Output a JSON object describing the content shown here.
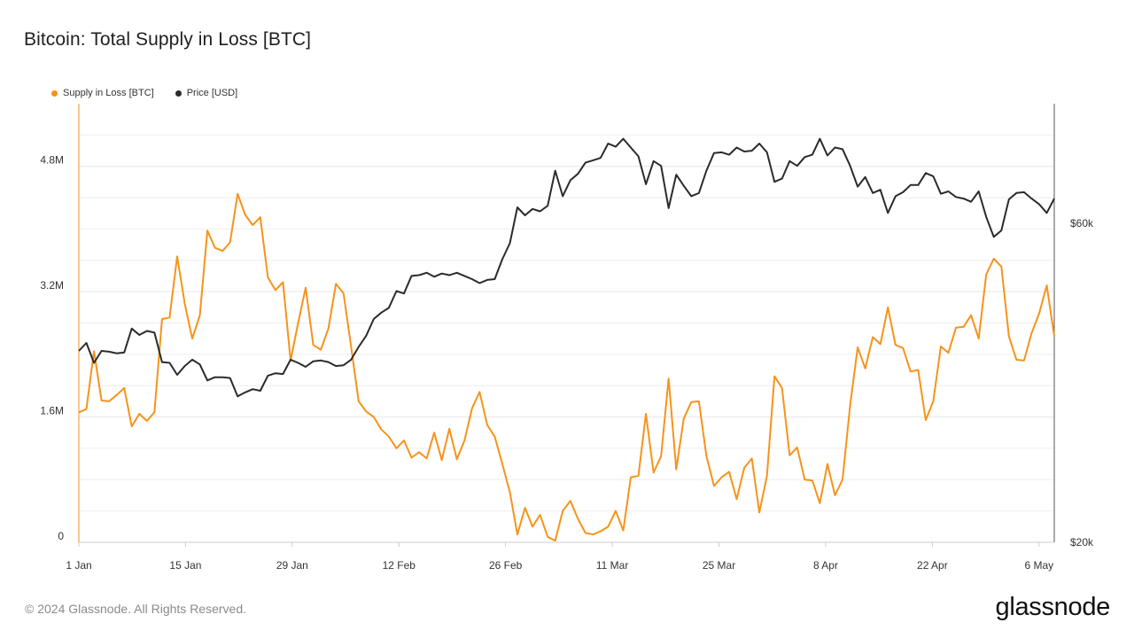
{
  "title": "Bitcoin: Total Supply in Loss [BTC]",
  "footer": "© 2024 Glassnode. All Rights Reserved.",
  "brand": "glassnode",
  "colors": {
    "supply": "#f7931a",
    "price": "#2b2b2b",
    "grid": "#eeeeee",
    "axis": "#cccccc"
  },
  "chart_data": {
    "type": "line",
    "title": "Bitcoin: Total Supply in Loss [BTC]",
    "legend_position": "top-left",
    "grid": true,
    "x_ticks": [
      "1 Jan",
      "15 Jan",
      "29 Jan",
      "12 Feb",
      "26 Feb",
      "11 Mar",
      "25 Mar",
      "8 Apr",
      "22 Apr",
      "6 May"
    ],
    "x_range_days": [
      0,
      128
    ],
    "y_left": {
      "ticks": [
        "0",
        "1.6M",
        "3.2M",
        "4.8M"
      ],
      "tick_values": [
        0,
        1.6,
        3.2,
        4.8
      ],
      "range": [
        0,
        5.6
      ],
      "unit": "M BTC"
    },
    "y_right": {
      "ticks": [
        "$20k",
        "$60k"
      ],
      "tick_values": [
        20,
        60
      ],
      "range": [
        20,
        75
      ],
      "unit": "k USD"
    },
    "series": [
      {
        "name": "Supply in Loss [BTC]",
        "axis": "left",
        "values": [
          1.66,
          1.7,
          2.44,
          1.81,
          1.8,
          1.88,
          1.97,
          1.48,
          1.64,
          1.55,
          1.66,
          2.85,
          2.87,
          3.65,
          3.05,
          2.6,
          2.9,
          3.98,
          3.76,
          3.72,
          3.83,
          4.45,
          4.18,
          4.05,
          4.15,
          3.38,
          3.22,
          3.32,
          2.32,
          2.8,
          3.25,
          2.52,
          2.46,
          2.73,
          3.3,
          3.18,
          2.5,
          1.8,
          1.67,
          1.6,
          1.44,
          1.35,
          1.2,
          1.3,
          1.08,
          1.15,
          1.07,
          1.4,
          1.05,
          1.45,
          1.06,
          1.3,
          1.71,
          1.92,
          1.5,
          1.35,
          1.0,
          0.64,
          0.1,
          0.44,
          0.2,
          0.35,
          0.07,
          0.02,
          0.4,
          0.53,
          0.3,
          0.12,
          0.1,
          0.14,
          0.2,
          0.4,
          0.15,
          0.83,
          0.85,
          1.64,
          0.89,
          1.1,
          2.09,
          0.93,
          1.58,
          1.79,
          1.8,
          1.1,
          0.72,
          0.83,
          0.9,
          0.55,
          0.95,
          1.07,
          0.38,
          0.85,
          2.12,
          1.97,
          1.11,
          1.21,
          0.8,
          0.79,
          0.5,
          1.0,
          0.6,
          0.8,
          1.75,
          2.49,
          2.22,
          2.62,
          2.53,
          3.0,
          2.52,
          2.48,
          2.18,
          2.2,
          1.56,
          1.8,
          2.5,
          2.42,
          2.74,
          2.75,
          2.9,
          2.6,
          3.42,
          3.62,
          3.52,
          2.63,
          2.33,
          2.32,
          2.67,
          2.92,
          3.28,
          2.63
        ]
      },
      {
        "name": "Price [USD]",
        "axis": "right",
        "values": [
          44.0,
          45.0,
          42.5,
          44.0,
          43.9,
          43.7,
          43.8,
          46.8,
          46.0,
          46.5,
          46.3,
          42.6,
          42.5,
          41.0,
          42.1,
          42.9,
          42.3,
          40.3,
          40.7,
          40.7,
          40.6,
          38.3,
          38.8,
          39.2,
          39.0,
          40.9,
          41.2,
          41.1,
          42.9,
          42.5,
          42.0,
          42.7,
          42.8,
          42.6,
          42.1,
          42.2,
          42.9,
          44.5,
          45.9,
          48.0,
          48.8,
          49.4,
          51.5,
          51.2,
          53.4,
          53.5,
          53.8,
          53.3,
          53.7,
          53.5,
          53.8,
          53.4,
          53.0,
          52.5,
          52.9,
          53.0,
          55.5,
          57.5,
          62.0,
          61.0,
          61.8,
          61.5,
          62.2,
          66.6,
          63.4,
          65.4,
          66.2,
          67.6,
          67.9,
          68.2,
          70.0,
          69.6,
          70.6,
          69.5,
          68.4,
          64.9,
          67.8,
          67.2,
          61.9,
          66.1,
          64.7,
          63.4,
          63.8,
          66.6,
          68.8,
          68.9,
          68.6,
          69.5,
          69.0,
          69.1,
          70.0,
          68.9,
          65.2,
          65.6,
          67.8,
          67.2,
          68.3,
          68.6,
          70.6,
          68.5,
          69.5,
          69.3,
          67.2,
          64.6,
          65.8,
          63.8,
          64.2,
          61.3,
          63.4,
          63.9,
          64.8,
          64.8,
          66.3,
          65.9,
          63.7,
          64.0,
          63.3,
          63.1,
          62.7,
          64.0,
          60.8,
          58.3,
          59.1,
          63.0,
          63.8,
          63.9,
          63.1,
          62.4,
          61.3,
          63.1
        ]
      }
    ]
  }
}
